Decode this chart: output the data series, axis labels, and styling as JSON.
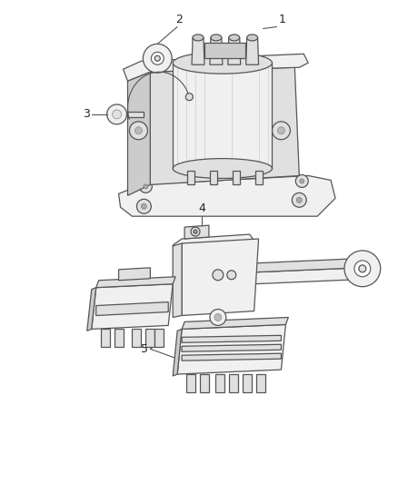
{
  "background_color": "#ffffff",
  "fig_width": 4.38,
  "fig_height": 5.33,
  "dpi": 100,
  "line_color": "#555555",
  "fill_light": "#f0f0f0",
  "fill_mid": "#e0e0e0",
  "fill_dark": "#cccccc",
  "label_color": "#222222",
  "label_fontsize": 9,
  "lw": 0.9
}
